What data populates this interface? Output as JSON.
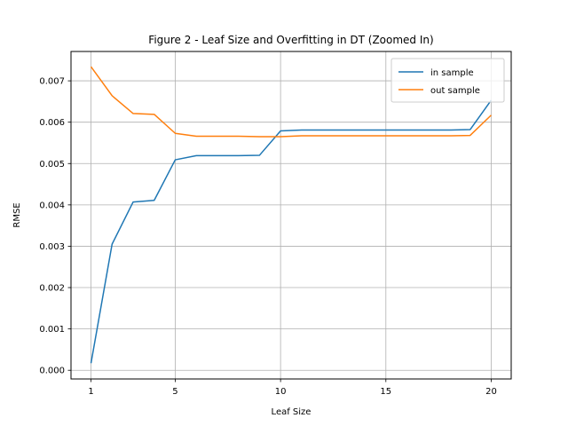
{
  "chart_data": {
    "type": "line",
    "title": "Figure 2 - Leaf Size and Overfitting in DT (Zoomed In)",
    "xlabel": "Leaf Size",
    "ylabel": "RMSE",
    "xlim": [
      0.05,
      20.95
    ],
    "ylim": [
      -0.00021,
      0.00771
    ],
    "xticks": [
      1,
      5,
      10,
      15,
      20
    ],
    "xtick_labels": [
      "1",
      "5",
      "10",
      "15",
      "20"
    ],
    "yticks": [
      0.0,
      0.001,
      0.002,
      0.003,
      0.004,
      0.005,
      0.006,
      0.007
    ],
    "ytick_labels": [
      "0.000",
      "0.001",
      "0.002",
      "0.003",
      "0.004",
      "0.005",
      "0.006",
      "0.007"
    ],
    "grid": true,
    "legend_position": "top-right",
    "x": [
      1,
      2,
      3,
      4,
      5,
      6,
      7,
      8,
      9,
      10,
      11,
      12,
      13,
      14,
      15,
      16,
      17,
      18,
      19,
      20
    ],
    "series": [
      {
        "name": "in sample",
        "color": "#1f77b4",
        "values": [
          0.00017,
          0.00305,
          0.00407,
          0.00411,
          0.00509,
          0.00519,
          0.00519,
          0.00519,
          0.0052,
          0.00579,
          0.00581,
          0.00581,
          0.00581,
          0.00581,
          0.00581,
          0.00581,
          0.00581,
          0.00581,
          0.00582,
          0.00653
        ]
      },
      {
        "name": "out sample",
        "color": "#ff7f0e",
        "values": [
          0.00734,
          0.00664,
          0.00621,
          0.00619,
          0.00573,
          0.00566,
          0.00566,
          0.00566,
          0.00565,
          0.00565,
          0.00567,
          0.00567,
          0.00567,
          0.00567,
          0.00567,
          0.00567,
          0.00567,
          0.00567,
          0.00568,
          0.00617
        ]
      }
    ]
  }
}
